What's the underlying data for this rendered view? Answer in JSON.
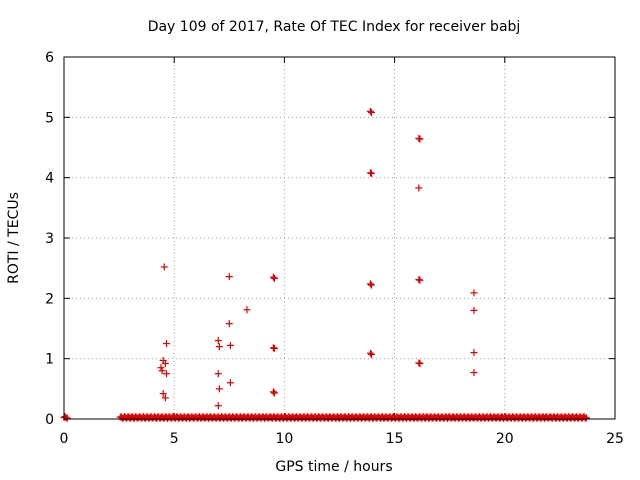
{
  "chart_data": {
    "type": "scatter",
    "title": "Day 109 of 2017, Rate Of TEC Index for receiver babj",
    "xlabel": "GPS time / hours",
    "ylabel": "ROTI / TECUs",
    "xlim": [
      0,
      25
    ],
    "ylim": [
      0,
      6
    ],
    "xticks": [
      "0",
      "5",
      "10",
      "15",
      "20",
      "25"
    ],
    "yticks": [
      "0",
      "1",
      "2",
      "3",
      "4",
      "5",
      "6"
    ],
    "grid": true,
    "marker": "+",
    "color": "#e00000",
    "baseline": {
      "description_value": 0.02,
      "ranges": [
        [
          0,
          0.15
        ],
        [
          2.55,
          23.7
        ]
      ]
    },
    "points": [
      [
        4.4,
        0.85
      ],
      [
        4.45,
        0.8
      ],
      [
        4.5,
        0.97
      ],
      [
        4.5,
        0.42
      ],
      [
        4.55,
        2.52
      ],
      [
        4.6,
        0.92
      ],
      [
        4.6,
        0.35
      ],
      [
        4.65,
        1.25
      ],
      [
        4.65,
        0.75
      ],
      [
        7.0,
        1.3
      ],
      [
        7.05,
        1.2
      ],
      [
        7.0,
        0.75
      ],
      [
        7.05,
        0.5
      ],
      [
        7.0,
        0.22
      ],
      [
        7.5,
        2.36
      ],
      [
        7.5,
        1.58
      ],
      [
        7.55,
        1.22
      ],
      [
        7.55,
        0.6
      ],
      [
        8.3,
        1.81
      ],
      [
        9.5,
        2.35
      ],
      [
        9.55,
        2.33
      ],
      [
        9.5,
        1.18
      ],
      [
        9.55,
        1.17
      ],
      [
        9.5,
        0.45
      ],
      [
        9.55,
        0.43
      ],
      [
        13.9,
        5.1
      ],
      [
        13.95,
        5.08
      ],
      [
        13.9,
        4.08
      ],
      [
        13.95,
        4.07
      ],
      [
        13.9,
        2.24
      ],
      [
        13.95,
        2.22
      ],
      [
        13.9,
        1.09
      ],
      [
        13.95,
        1.07
      ],
      [
        16.1,
        4.65
      ],
      [
        16.15,
        4.64
      ],
      [
        16.1,
        3.83
      ],
      [
        16.1,
        2.31
      ],
      [
        16.15,
        2.3
      ],
      [
        16.1,
        0.93
      ],
      [
        16.15,
        0.92
      ],
      [
        18.6,
        2.09
      ],
      [
        18.6,
        1.8
      ],
      [
        18.6,
        1.1
      ],
      [
        18.6,
        0.77
      ]
    ]
  }
}
